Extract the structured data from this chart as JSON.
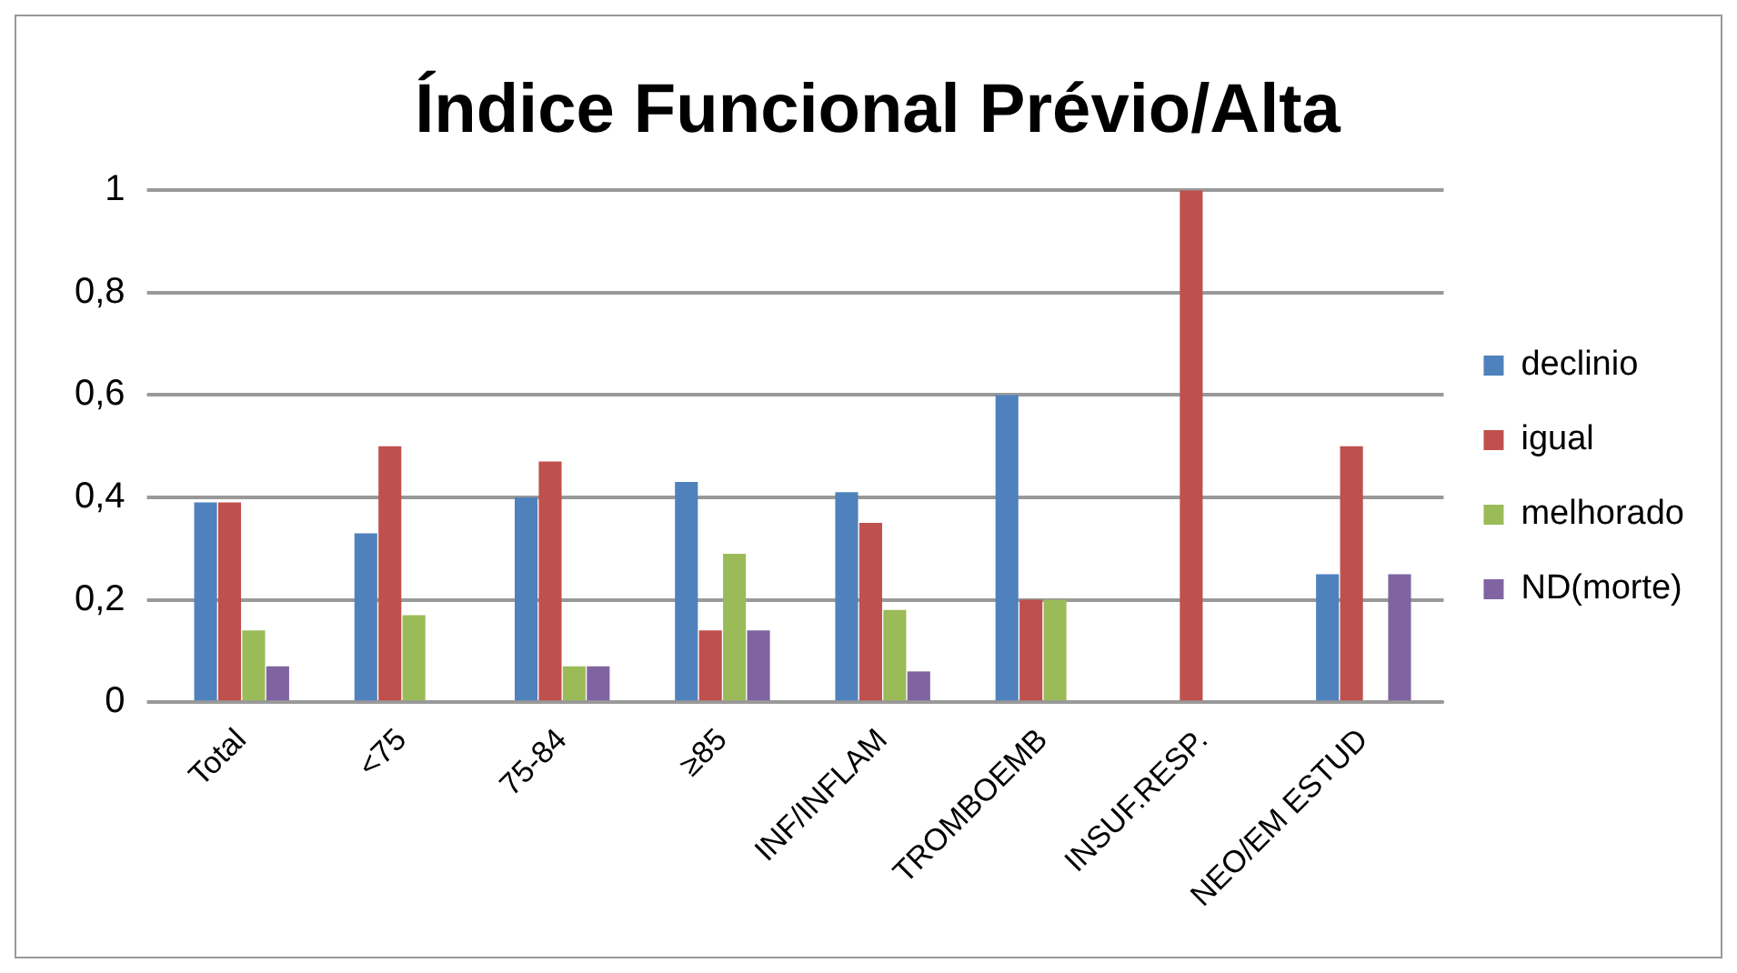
{
  "chart_data": {
    "type": "bar",
    "title": "Índice Funcional Prévio/Alta",
    "categories": [
      "Total",
      "<75",
      "75-84",
      "≥85",
      "INF/INFLAM",
      "TROMBOEMB",
      "INSUF.RESP.",
      "NEO/EM ESTUD"
    ],
    "series": [
      {
        "name": "declinio",
        "color": "#4f81bd",
        "values": [
          0.39,
          0.33,
          0.4,
          0.43,
          0.41,
          0.6,
          0,
          0.25
        ]
      },
      {
        "name": "igual",
        "color": "#c0504d",
        "values": [
          0.39,
          0.5,
          0.47,
          0.14,
          0.35,
          0.2,
          1,
          0.5
        ]
      },
      {
        "name": "melhorado",
        "color": "#9bbb59",
        "values": [
          0.14,
          0.17,
          0.07,
          0.29,
          0.18,
          0.2,
          0,
          0
        ]
      },
      {
        "name": "ND(morte)",
        "color": "#8064a2",
        "values": [
          0.07,
          0,
          0.07,
          0.14,
          0.06,
          0,
          0,
          0.25
        ]
      }
    ],
    "ylim": [
      0,
      1
    ],
    "yticks": [
      {
        "value": 0,
        "label": "0"
      },
      {
        "value": 0.2,
        "label": "0,2"
      },
      {
        "value": 0.4,
        "label": "0,4"
      },
      {
        "value": 0.6,
        "label": "0,6"
      },
      {
        "value": 0.8,
        "label": "0,8"
      },
      {
        "value": 1,
        "label": "1"
      }
    ],
    "grid": "y",
    "legend": "right"
  }
}
